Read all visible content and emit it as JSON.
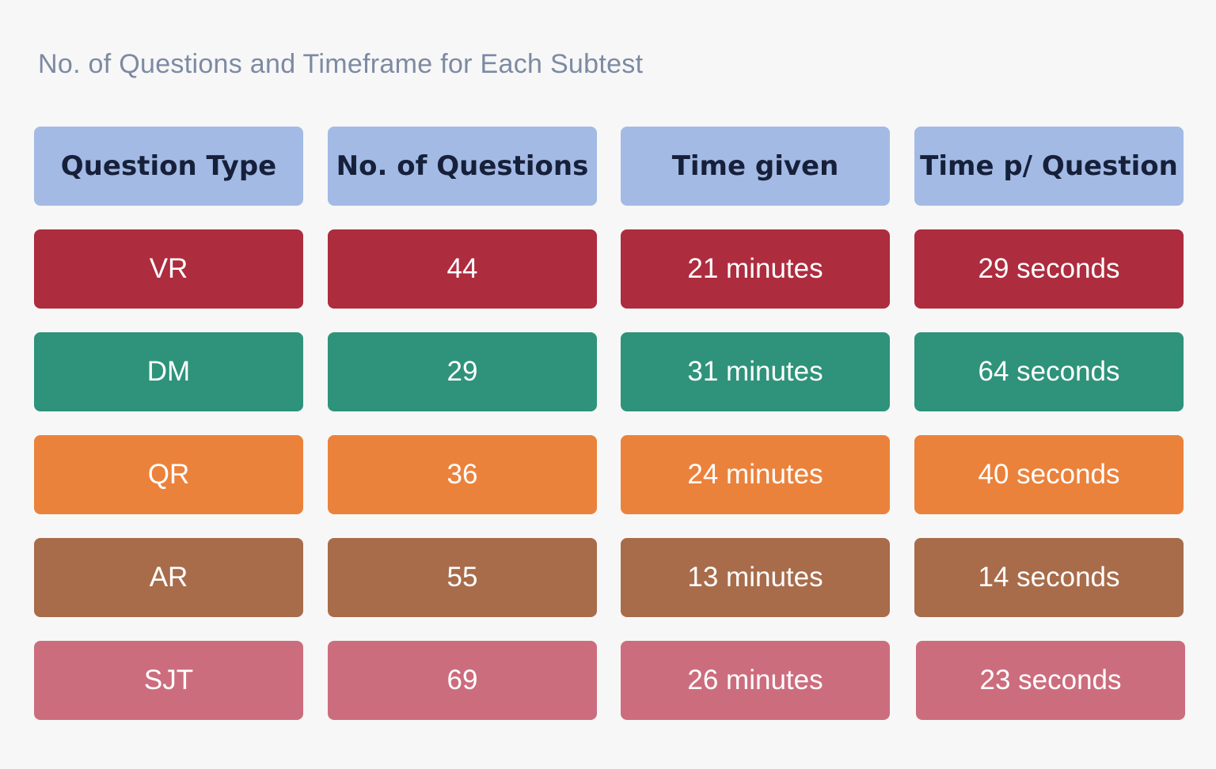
{
  "chart_data": {
    "type": "table",
    "title": "No. of Questions and Timeframe for Each Subtest",
    "header_color": "#a3bae5",
    "columns": [
      "Question Type",
      "No. of Questions",
      "Time given",
      "Time p/ Question"
    ],
    "rows": [
      {
        "cells": [
          "VR",
          "44",
          "21 minutes",
          "29 seconds"
        ],
        "color": "#ad2c3e"
      },
      {
        "cells": [
          "DM",
          "29",
          "31 minutes",
          "64 seconds"
        ],
        "color": "#2e937a"
      },
      {
        "cells": [
          "QR",
          "36",
          "24 minutes",
          "40 seconds"
        ],
        "color": "#eb823b"
      },
      {
        "cells": [
          "AR",
          "55",
          "13 minutes",
          "14 seconds"
        ],
        "color": "#a86c4b"
      },
      {
        "cells": [
          "SJT",
          "69",
          "26 minutes",
          "23 seconds"
        ],
        "color": "#cc6d7e"
      }
    ]
  }
}
